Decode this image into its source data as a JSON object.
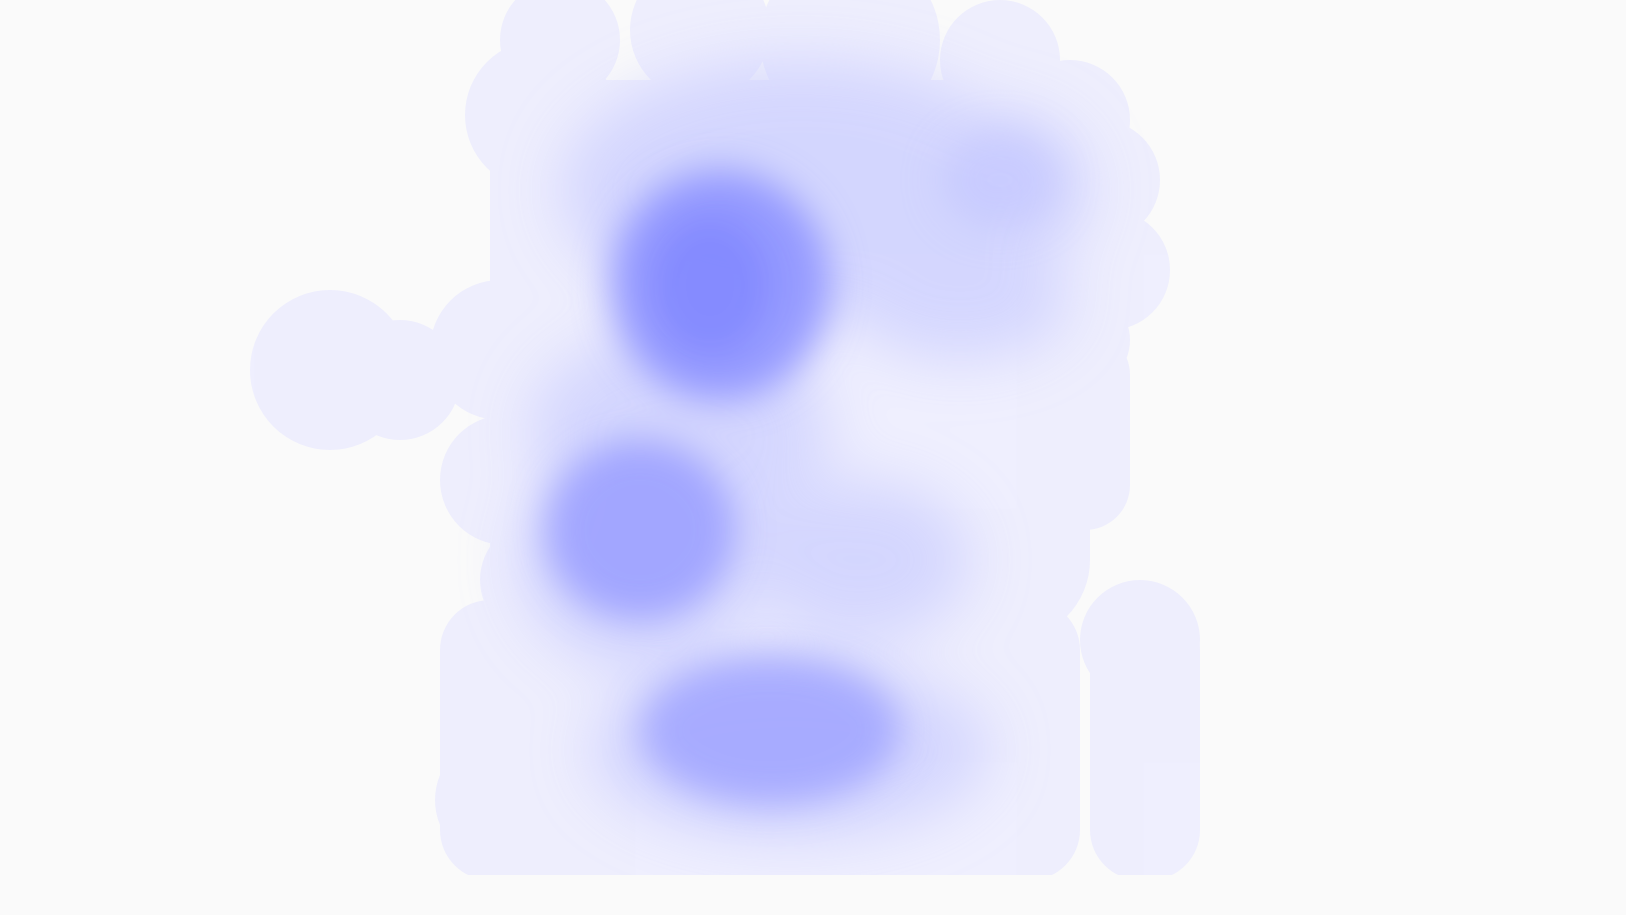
{
  "canvas": {
    "background": "#fafafa",
    "ink": "#6f78ff"
  },
  "heatmap": {
    "has_text": false,
    "clusters": [
      {
        "name": "upper-hotspot",
        "intensity": 0.85
      },
      {
        "name": "middle-hotspot",
        "intensity": 0.65
      },
      {
        "name": "lower-hotspot",
        "intensity": 0.6
      },
      {
        "name": "upper-right-lobe",
        "intensity": 0.35
      },
      {
        "name": "left-tail",
        "intensity": 0.15
      },
      {
        "name": "right-tail",
        "intensity": 0.12
      }
    ]
  }
}
